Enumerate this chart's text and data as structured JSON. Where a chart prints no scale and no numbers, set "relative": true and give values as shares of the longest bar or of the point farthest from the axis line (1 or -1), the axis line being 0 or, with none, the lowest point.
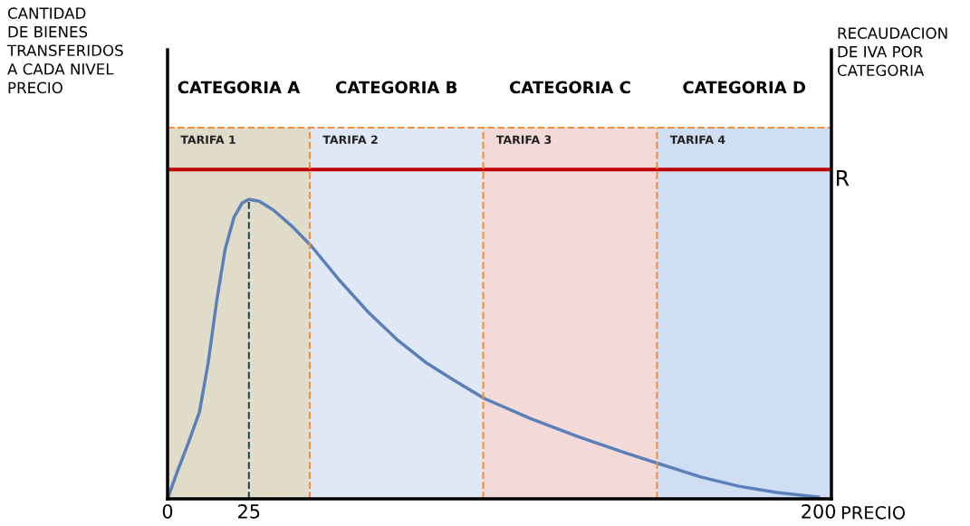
{
  "chart_data": {
    "type": "line",
    "relative": true,
    "xlabel": "PRECIO",
    "x": [
      0,
      3.1,
      6.3,
      9.8,
      12.5,
      15.2,
      17.7,
      20.4,
      22.9,
      25,
      28.2,
      32.6,
      38.4,
      44.3,
      53.0,
      61.8,
      70.5,
      79.3,
      88.0,
      97.4,
      111.4,
      126.0,
      140.6,
      150.8,
      163.9,
      175.6,
      187.3,
      200
    ],
    "series": [
      {
        "type": "line",
        "x": [
          25,
          25
        ],
        "values": [
          0,
          1
        ],
        "color": "#1f4a4a",
        "line_style": "dashed"
      },
      {
        "color": "#5b7fb8",
        "values": [
          0,
          0.094,
          0.184,
          0.29,
          0.456,
          0.668,
          0.834,
          0.94,
          0.988,
          1,
          0.994,
          0.964,
          0.909,
          0.843,
          0.728,
          0.622,
          0.532,
          0.456,
          0.396,
          0.335,
          0.269,
          0.208,
          0.154,
          0.118,
          0.073,
          0.042,
          0.021,
          0.006
        ]
      }
    ],
    "xlim": [
      0,
      204
    ],
    "xticks": [
      0,
      25,
      200
    ],
    "tick_labels": "x",
    "bands": [
      {
        "axis": "x",
        "from": 0,
        "to": 43.7,
        "label": "TARIFA 1",
        "color": "#c9bf9c"
      },
      {
        "axis": "x",
        "from": 43.7,
        "to": 97,
        "label": "TARIFA 2",
        "color": "#c8d5ec"
      },
      {
        "axis": "x",
        "from": 97,
        "to": 150.4,
        "label": "TARIFA 3",
        "color": "#ebb9b9"
      },
      {
        "axis": "x",
        "from": 150.4,
        "to": 204,
        "label": "TARIFA 4",
        "color": "#a8c3e7"
      }
    ],
    "annotations": [
      "CATEGORIA A",
      "CATEGORIA B",
      "CATEGORIA C",
      "CATEGORIA D",
      "CANTIDAD\nDE BIENES\nTRANSFERIDOS\nA CADA NIVEL\nPRECIO",
      "RECAUDACION\nDE IVA POR\nCATEGORIA"
    ],
    "ref_lines": [
      {
        "axis": "y",
        "value": 1.1,
        "label": "R",
        "color": "#c00000",
        "line_style": "solid"
      },
      {
        "axis": "y",
        "value": 1.24,
        "color": "#f0903c",
        "line_style": "dashed"
      },
      {
        "axis": "x",
        "value": 43.7,
        "color": "#f0903c",
        "line_style": "dashed"
      },
      {
        "axis": "x",
        "value": 97,
        "color": "#f0903c",
        "line_style": "dashed"
      },
      {
        "axis": "x",
        "value": 150.4,
        "color": "#f0903c",
        "line_style": "dashed"
      }
    ],
    "grid": false,
    "legend": false,
    "marker": "none",
    "line_style": "solid"
  }
}
